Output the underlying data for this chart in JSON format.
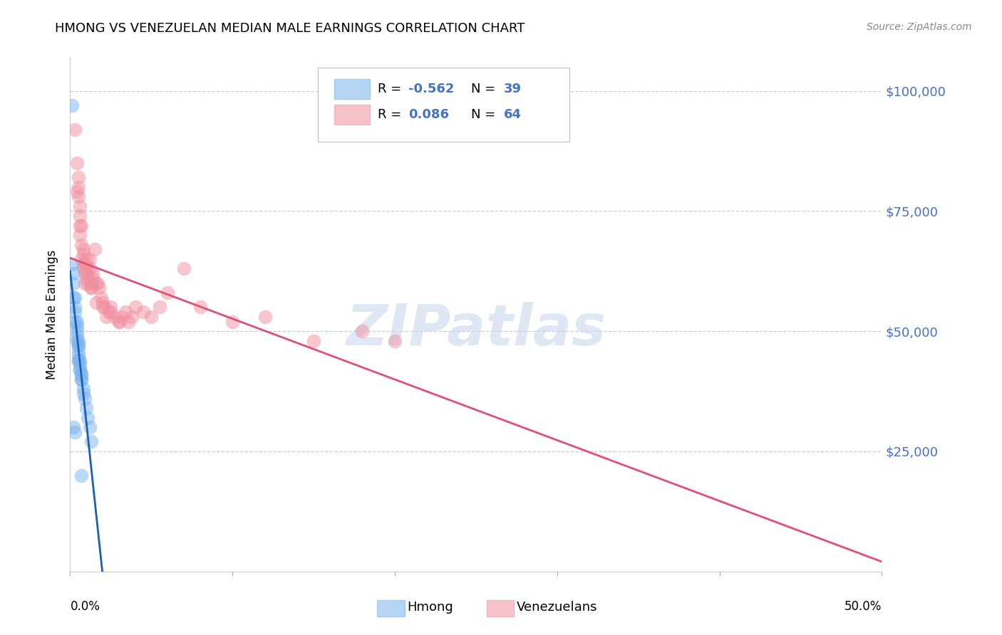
{
  "title": "HMONG VS VENEZUELAN MEDIAN MALE EARNINGS CORRELATION CHART",
  "source": "Source: ZipAtlas.com",
  "ylabel": "Median Male Earnings",
  "ytick_labels": [
    "$25,000",
    "$50,000",
    "$75,000",
    "$100,000"
  ],
  "ytick_values": [
    25000,
    50000,
    75000,
    100000
  ],
  "ymax": 107000,
  "ymin": 0,
  "xmin": 0.0,
  "xmax": 0.5,
  "hmong_label": "Hmong",
  "venezuelan_label": "Venezuelans",
  "watermark": "ZIPatlas",
  "hmong_color": "#7ab3ef",
  "venezuelan_color": "#f090a0",
  "hmong_line_color": "#1a5fb4",
  "venezuelan_line_color": "#e05070",
  "legend_R1": "R = ",
  "legend_V1": "-0.562",
  "legend_N1": "N = ",
  "legend_NV1": "39",
  "legend_R2": "R = ",
  "legend_V2": "0.086",
  "legend_N2": "N = ",
  "legend_NV2": "64",
  "hmong_x": [
    0.001,
    0.001,
    0.002,
    0.002,
    0.002,
    0.003,
    0.003,
    0.003,
    0.003,
    0.004,
    0.004,
    0.004,
    0.004,
    0.004,
    0.005,
    0.005,
    0.005,
    0.005,
    0.005,
    0.005,
    0.005,
    0.006,
    0.006,
    0.006,
    0.006,
    0.007,
    0.007,
    0.007,
    0.007,
    0.008,
    0.008,
    0.009,
    0.01,
    0.011,
    0.012,
    0.013,
    0.002,
    0.003,
    0.007
  ],
  "hmong_y": [
    97000,
    64000,
    62000,
    60000,
    57000,
    57000,
    55000,
    54000,
    52000,
    52000,
    51000,
    50000,
    49000,
    48000,
    48000,
    47000,
    47000,
    46000,
    45000,
    44000,
    44000,
    44000,
    43000,
    42000,
    42000,
    41000,
    41000,
    40000,
    40000,
    38000,
    37000,
    36000,
    34000,
    32000,
    30000,
    27000,
    30000,
    29000,
    20000
  ],
  "venezuelan_x": [
    0.003,
    0.004,
    0.004,
    0.005,
    0.005,
    0.005,
    0.006,
    0.006,
    0.006,
    0.007,
    0.007,
    0.007,
    0.008,
    0.008,
    0.008,
    0.009,
    0.009,
    0.009,
    0.01,
    0.01,
    0.011,
    0.011,
    0.012,
    0.012,
    0.013,
    0.013,
    0.014,
    0.014,
    0.015,
    0.016,
    0.017,
    0.018,
    0.019,
    0.02,
    0.021,
    0.022,
    0.024,
    0.025,
    0.027,
    0.03,
    0.032,
    0.034,
    0.036,
    0.038,
    0.04,
    0.045,
    0.05,
    0.055,
    0.06,
    0.07,
    0.08,
    0.1,
    0.12,
    0.15,
    0.18,
    0.2,
    0.006,
    0.008,
    0.01,
    0.013,
    0.016,
    0.02,
    0.025,
    0.03
  ],
  "venezuelan_y": [
    92000,
    85000,
    79000,
    82000,
    78000,
    80000,
    76000,
    72000,
    70000,
    72000,
    68000,
    65000,
    67000,
    64000,
    63000,
    64000,
    62000,
    60000,
    63000,
    61000,
    62000,
    60000,
    65000,
    63000,
    60000,
    59000,
    62000,
    61000,
    67000,
    60000,
    60000,
    59000,
    57000,
    56000,
    55000,
    53000,
    54000,
    55000,
    53000,
    52000,
    53000,
    54000,
    52000,
    53000,
    55000,
    54000,
    53000,
    55000,
    58000,
    63000,
    55000,
    52000,
    53000,
    48000,
    50000,
    48000,
    74000,
    66000,
    65000,
    59000,
    56000,
    55000,
    54000,
    52000
  ]
}
